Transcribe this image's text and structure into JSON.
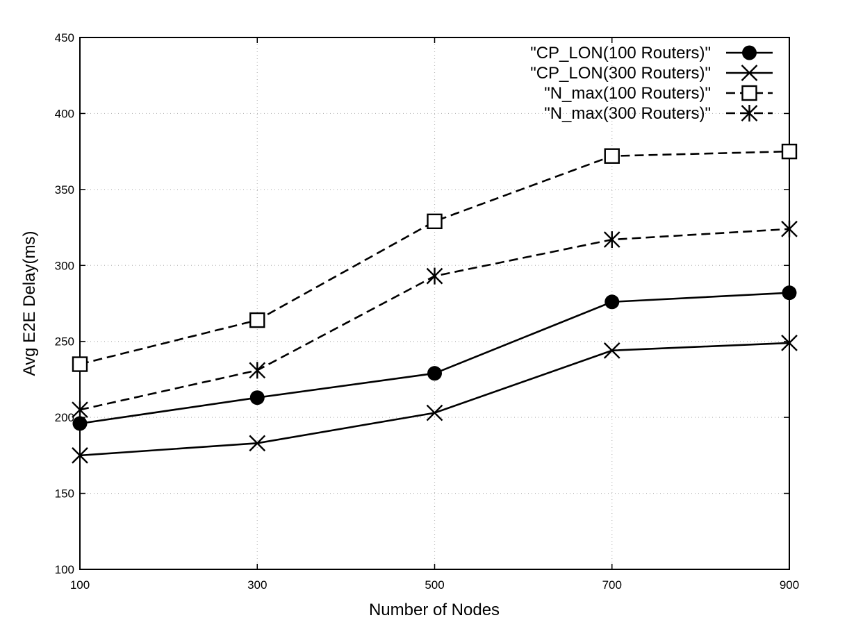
{
  "chart_data": {
    "type": "line",
    "title": "",
    "xlabel": "Number of Nodes",
    "ylabel": "Avg E2E Delay(ms)",
    "x": [
      100,
      300,
      500,
      700,
      900
    ],
    "xlim": [
      100,
      900
    ],
    "ylim": [
      100,
      450
    ],
    "xticks": [
      100,
      300,
      500,
      700,
      900
    ],
    "yticks": [
      100,
      150,
      200,
      250,
      300,
      350,
      400,
      450
    ],
    "grid": true,
    "legend_position": "top-right",
    "series": [
      {
        "name": "\"CP_LON(100 Routers)\"",
        "values": [
          196,
          213,
          229,
          276,
          282
        ],
        "marker": "filled-circle",
        "dash": "solid",
        "color": "#000000"
      },
      {
        "name": "\"CP_LON(300 Routers)\"",
        "values": [
          175,
          183,
          203,
          244,
          249
        ],
        "marker": "x",
        "dash": "solid",
        "color": "#000000"
      },
      {
        "name": "\"N_max(100 Routers)\"",
        "values": [
          235,
          264,
          329,
          372,
          375
        ],
        "marker": "open-square",
        "dash": "dashed",
        "color": "#000000"
      },
      {
        "name": "\"N_max(300 Routers)\"",
        "values": [
          205,
          231,
          293,
          317,
          324
        ],
        "marker": "asterisk",
        "dash": "dashed",
        "color": "#000000"
      }
    ]
  }
}
